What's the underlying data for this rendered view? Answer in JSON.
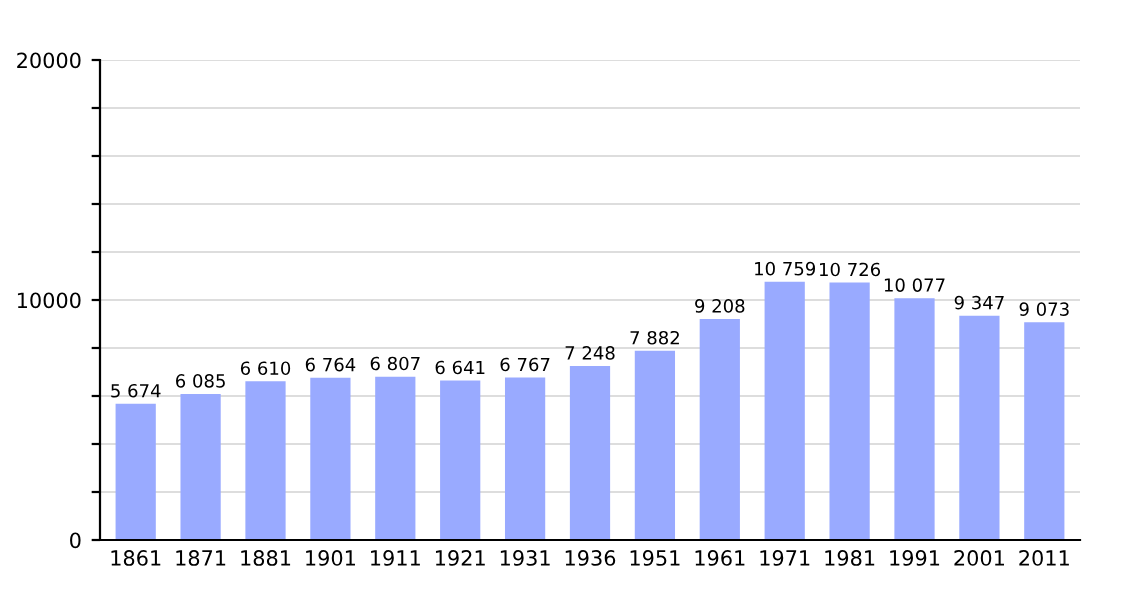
{
  "chart_data": {
    "type": "bar",
    "categories": [
      "1861",
      "1871",
      "1881",
      "1901",
      "1911",
      "1921",
      "1931",
      "1936",
      "1951",
      "1961",
      "1971",
      "1981",
      "1991",
      "2001",
      "2011"
    ],
    "values": [
      5674,
      6085,
      6610,
      6764,
      6807,
      6641,
      6767,
      7248,
      7882,
      9208,
      10759,
      10726,
      10077,
      9347,
      9073
    ],
    "value_labels": [
      "5 674",
      "6 085",
      "6 610",
      "6 764",
      "6 807",
      "6 641",
      "6 767",
      "7 248",
      "7 882",
      "9 208",
      "10 759",
      "10 726",
      "10 077",
      "9 347",
      "9 073"
    ],
    "color": "#99aaff",
    "ylim": [
      0,
      20000
    ],
    "yticks": [
      0,
      {
        "value": 2000,
        "label": null
      },
      {
        "value": 4000,
        "label": null
      },
      {
        "value": 6000,
        "label": null
      },
      {
        "value": 8000,
        "label": null
      },
      10000,
      {
        "value": 12000,
        "label": null
      },
      {
        "value": 14000,
        "label": null
      },
      {
        "value": 16000,
        "label": null
      },
      {
        "value": 18000,
        "label": null
      },
      20000
    ],
    "grid": "y"
  }
}
